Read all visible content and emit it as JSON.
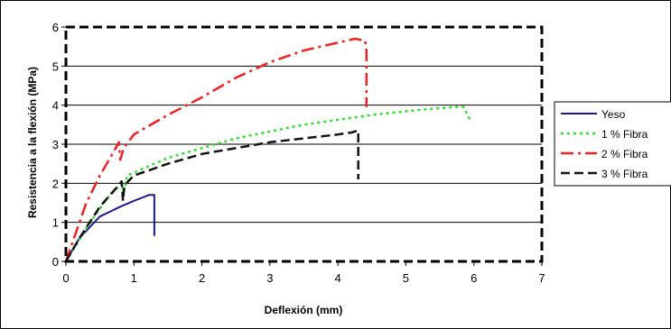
{
  "chart_data": {
    "type": "line",
    "xlabel": "Deflexión (mm)",
    "ylabel": "Resistencia a la flexión (MPa)",
    "xlim": [
      0,
      7
    ],
    "ylim": [
      0,
      6
    ],
    "x_ticks": [
      "0",
      "1",
      "2",
      "3",
      "4",
      "5",
      "6",
      "7"
    ],
    "y_ticks": [
      "0",
      "1",
      "2",
      "3",
      "4",
      "5",
      "6"
    ],
    "grid": "horizontal",
    "legend_position": "right",
    "series": [
      {
        "name": "Yeso",
        "color": "#1a1a8c",
        "dash": "solid",
        "points": [
          [
            0,
            0
          ],
          [
            0.2,
            0.6
          ],
          [
            0.5,
            1.15
          ],
          [
            0.8,
            1.4
          ],
          [
            1.0,
            1.55
          ],
          [
            1.15,
            1.65
          ],
          [
            1.22,
            1.7
          ],
          [
            1.3,
            1.7
          ],
          [
            1.3,
            0.65
          ]
        ]
      },
      {
        "name": "1 % Fibra",
        "color": "#33dd33",
        "dash": "dotted",
        "points": [
          [
            0,
            0
          ],
          [
            0.3,
            0.85
          ],
          [
            0.6,
            1.6
          ],
          [
            0.82,
            2.0
          ],
          [
            0.85,
            1.75
          ],
          [
            0.9,
            2.2
          ],
          [
            1.5,
            2.65
          ],
          [
            2.5,
            3.15
          ],
          [
            3.5,
            3.5
          ],
          [
            4.5,
            3.75
          ],
          [
            5.2,
            3.88
          ],
          [
            5.7,
            3.95
          ],
          [
            5.85,
            3.95
          ],
          [
            5.95,
            3.6
          ]
        ]
      },
      {
        "name": "2 % Fibra",
        "color": "#ee2222",
        "dash": "dashdot",
        "points": [
          [
            0,
            0
          ],
          [
            0.1,
            0.5
          ],
          [
            0.3,
            1.5
          ],
          [
            0.5,
            2.2
          ],
          [
            0.7,
            2.8
          ],
          [
            0.78,
            3.05
          ],
          [
            0.8,
            2.6
          ],
          [
            0.85,
            2.9
          ],
          [
            1.0,
            3.25
          ],
          [
            1.5,
            3.75
          ],
          [
            2.0,
            4.2
          ],
          [
            2.5,
            4.7
          ],
          [
            3.0,
            5.1
          ],
          [
            3.5,
            5.4
          ],
          [
            4.0,
            5.6
          ],
          [
            4.25,
            5.7
          ],
          [
            4.4,
            5.65
          ],
          [
            4.42,
            5.4
          ],
          [
            4.42,
            3.95
          ]
        ]
      },
      {
        "name": "3 % Fibra",
        "color": "#111111",
        "dash": "dashed",
        "points": [
          [
            0,
            0
          ],
          [
            0.2,
            0.6
          ],
          [
            0.5,
            1.4
          ],
          [
            0.75,
            1.9
          ],
          [
            0.82,
            2.05
          ],
          [
            0.84,
            1.55
          ],
          [
            0.86,
            1.95
          ],
          [
            1.0,
            2.2
          ],
          [
            1.5,
            2.5
          ],
          [
            2.0,
            2.75
          ],
          [
            2.5,
            2.9
          ],
          [
            3.0,
            3.05
          ],
          [
            3.5,
            3.15
          ],
          [
            4.0,
            3.25
          ],
          [
            4.2,
            3.3
          ],
          [
            4.3,
            3.35
          ],
          [
            4.3,
            2.1
          ]
        ]
      }
    ]
  }
}
